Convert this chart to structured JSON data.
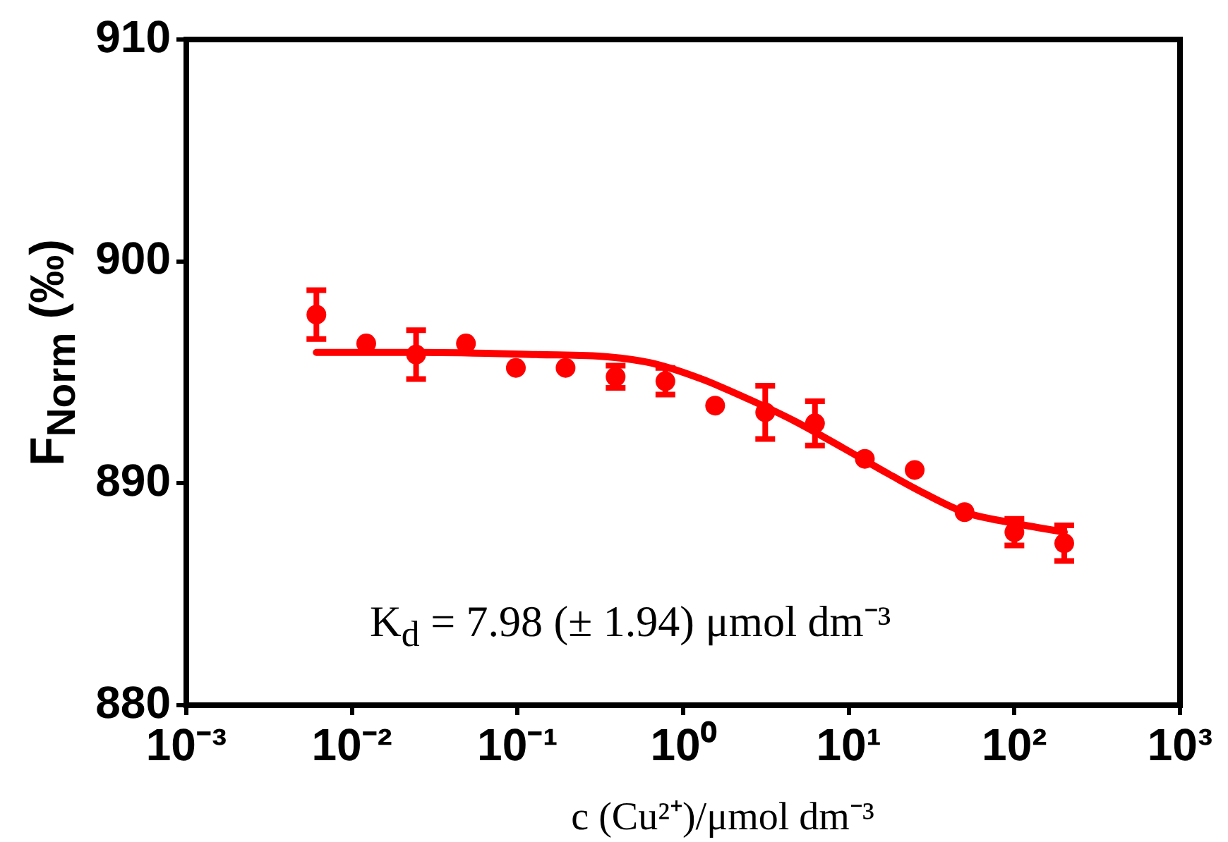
{
  "chart_data": {
    "type": "scatter",
    "xlabel": "c (Cu²⁺)/μmol dm⁻³",
    "ylabel": "F$_{Norm}$ (‰)",
    "log": "x",
    "marker": "circle",
    "xlim": [
      0.001,
      1000
    ],
    "xticks": [
      {
        "value": 0.001,
        "label": "10⁻³"
      },
      {
        "value": 0.01,
        "label": "10⁻²"
      },
      {
        "value": 0.1,
        "label": "10⁻¹"
      },
      {
        "value": 1,
        "label": "10⁰"
      },
      {
        "value": 10,
        "label": "10¹"
      },
      {
        "value": 100,
        "label": "10²"
      },
      {
        "value": 1000,
        "label": "10³"
      }
    ],
    "ylim": [
      880,
      910
    ],
    "yticks": [
      880,
      890,
      900,
      910
    ],
    "annotations": [
      "K$_{d}$ = 7.98 (± 1.94) μmol dm⁻³"
    ],
    "series": [
      {
        "color": "#ff0000",
        "x": [
          0.0061,
          0.0122,
          0.0244,
          0.0488,
          0.0977,
          0.195,
          0.391,
          0.781,
          1.56,
          3.13,
          6.25,
          12.5,
          25,
          50,
          100,
          200
        ],
        "values": [
          897.6,
          896.3,
          895.8,
          896.3,
          895.2,
          895.2,
          894.8,
          894.6,
          893.5,
          893.2,
          892.7,
          891.1,
          890.6,
          888.7,
          887.8,
          887.3
        ],
        "errors": [
          1.1,
          null,
          1.1,
          null,
          null,
          null,
          0.5,
          0.6,
          null,
          1.2,
          1.0,
          null,
          null,
          null,
          0.6,
          0.8
        ]
      },
      {
        "type": "line",
        "color": "#ff0000",
        "marker": "none",
        "x": [
          0.0061,
          0.027,
          0.13,
          0.35,
          0.66,
          1.29,
          2.47,
          4.72,
          9.2,
          17.6,
          27.7,
          49.8,
          100,
          200
        ],
        "values": [
          895.9,
          895.9,
          895.8,
          895.7,
          895.4,
          894.7,
          893.8,
          892.8,
          891.6,
          890.4,
          889.6,
          888.7,
          888.2,
          887.8
        ]
      }
    ]
  }
}
